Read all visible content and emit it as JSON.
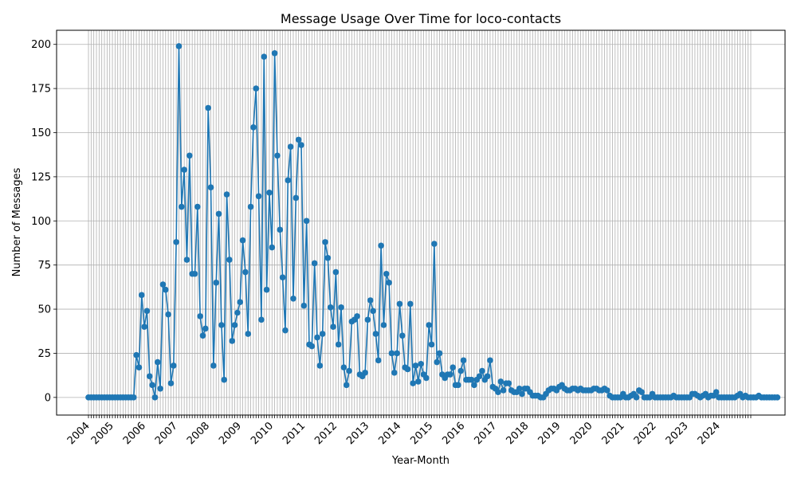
{
  "chart_data": {
    "type": "line",
    "title": "Message Usage Over Time for loco-contacts",
    "xlabel": "Year-Month",
    "ylabel": "Number of Messages",
    "ylim": [
      -10,
      208
    ],
    "yticks": [
      0,
      25,
      50,
      75,
      100,
      125,
      150,
      175,
      200
    ],
    "xticks": [
      "2004",
      "2005",
      "2006",
      "2007",
      "2008",
      "2009",
      "2010",
      "2011",
      "2012",
      "2013",
      "2014",
      "2015",
      "2016",
      "2017",
      "2018",
      "2019",
      "2020",
      "2021",
      "2022",
      "2023",
      "2024"
    ],
    "x_start": "2004-04",
    "x_end": "2025-01",
    "grid": true,
    "line_color": "#1f77b4",
    "series": [
      {
        "values": [
          0,
          0,
          0,
          0,
          0,
          0,
          0,
          0,
          0,
          0,
          0,
          0,
          0,
          0,
          0,
          0,
          0,
          0,
          24,
          17,
          58,
          40,
          49,
          12,
          7,
          0,
          20,
          5,
          64,
          61,
          47,
          8,
          18,
          88,
          199,
          108,
          129,
          78,
          137,
          70,
          70,
          108,
          46,
          35,
          39,
          164,
          119,
          18,
          65,
          104,
          41,
          10,
          115,
          78,
          32,
          41,
          48,
          54,
          89,
          71,
          36,
          108,
          153,
          175,
          114,
          44,
          193,
          61,
          116,
          85,
          195,
          137,
          95,
          68,
          38,
          123,
          142,
          56,
          113,
          146,
          143,
          52,
          100,
          30,
          29,
          76,
          34,
          18,
          36,
          88,
          79,
          51,
          40,
          71,
          30,
          51,
          17,
          7,
          15,
          43,
          44,
          46,
          13,
          12,
          14,
          44,
          55,
          49,
          36,
          21,
          86,
          41,
          70,
          65,
          25,
          14,
          25,
          53,
          35,
          17,
          16,
          53,
          8,
          18,
          9,
          19,
          13,
          11,
          41,
          30,
          87,
          20,
          25,
          13,
          11,
          13,
          13,
          17,
          7,
          7,
          15,
          21,
          10,
          10,
          10,
          7,
          10,
          12,
          15,
          10,
          12,
          21,
          6,
          5,
          3,
          9,
          4,
          8,
          8,
          4,
          3,
          3,
          5,
          2,
          5,
          5,
          3,
          1,
          1,
          1,
          0,
          0,
          2,
          4,
          5,
          5,
          4,
          6,
          7,
          5,
          4,
          4,
          5,
          5,
          4,
          5,
          4,
          4,
          4,
          4,
          5,
          5,
          4,
          4,
          5,
          4,
          1,
          0,
          0,
          0,
          0,
          2,
          0,
          0,
          1,
          2,
          0,
          4,
          3,
          0,
          0,
          0,
          2,
          0,
          0,
          0,
          0,
          0,
          0,
          0,
          1,
          0,
          0,
          0,
          0,
          0,
          0,
          2,
          2,
          1,
          0,
          1,
          2,
          0,
          1,
          1,
          3,
          0,
          0,
          0,
          0,
          0,
          0,
          0,
          1,
          2,
          0,
          1,
          0,
          0,
          0,
          0,
          1,
          0,
          0,
          0,
          0,
          0,
          0,
          0
        ]
      }
    ]
  }
}
